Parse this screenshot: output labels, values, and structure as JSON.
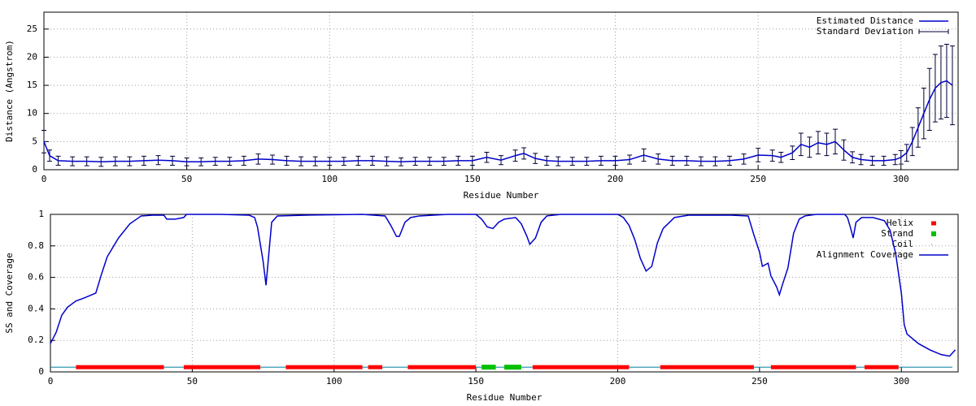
{
  "chart_data": [
    {
      "type": "errorbar",
      "x_label": "Residue Number",
      "y_label": "Distance (Angstrom)",
      "xlim": [
        0,
        320
      ],
      "ylim": [
        0,
        28
      ],
      "xticks": [
        0,
        50,
        100,
        150,
        200,
        250,
        300
      ],
      "yticks": [
        0,
        5,
        10,
        15,
        20,
        25
      ],
      "grid": true,
      "legend": "upper right",
      "x": [
        0,
        2,
        5,
        10,
        15,
        20,
        25,
        30,
        35,
        40,
        45,
        50,
        55,
        60,
        65,
        70,
        75,
        80,
        85,
        90,
        95,
        100,
        105,
        110,
        115,
        120,
        125,
        130,
        135,
        140,
        145,
        150,
        155,
        160,
        165,
        168,
        172,
        176,
        180,
        185,
        190,
        195,
        200,
        205,
        210,
        215,
        220,
        225,
        230,
        235,
        240,
        245,
        250,
        255,
        258,
        262,
        265,
        268,
        271,
        274,
        277,
        280,
        283,
        286,
        290,
        294,
        298,
        300,
        302,
        304,
        306,
        308,
        310,
        312,
        314,
        316,
        318
      ],
      "series": [
        {
          "name": "Estimated Distance",
          "color": "#0000cc",
          "values": [
            5.0,
            2.5,
            1.6,
            1.5,
            1.5,
            1.4,
            1.5,
            1.5,
            1.6,
            1.7,
            1.6,
            1.4,
            1.4,
            1.5,
            1.5,
            1.6,
            1.9,
            1.8,
            1.6,
            1.5,
            1.5,
            1.5,
            1.5,
            1.6,
            1.6,
            1.5,
            1.4,
            1.5,
            1.5,
            1.5,
            1.6,
            1.6,
            2.2,
            1.7,
            2.5,
            2.9,
            2.0,
            1.6,
            1.5,
            1.5,
            1.5,
            1.6,
            1.6,
            1.8,
            2.6,
            1.9,
            1.6,
            1.6,
            1.5,
            1.5,
            1.6,
            1.9,
            2.6,
            2.5,
            2.2,
            3.0,
            4.5,
            4.0,
            4.8,
            4.5,
            5.0,
            3.5,
            2.2,
            1.8,
            1.6,
            1.6,
            1.8,
            2.2,
            3.0,
            5.0,
            7.5,
            10.0,
            12.5,
            14.5,
            15.5,
            15.8,
            15.0
          ]
        },
        {
          "name": "Standard Deviation",
          "color": "#000033",
          "errors": [
            2.0,
            1.0,
            0.8,
            0.8,
            0.8,
            0.8,
            0.8,
            0.8,
            0.8,
            0.8,
            0.8,
            0.7,
            0.7,
            0.7,
            0.7,
            0.8,
            0.9,
            0.8,
            0.8,
            0.8,
            0.8,
            0.7,
            0.7,
            0.8,
            0.8,
            0.8,
            0.7,
            0.7,
            0.7,
            0.7,
            0.8,
            0.8,
            0.9,
            0.8,
            1.0,
            1.0,
            0.9,
            0.8,
            0.8,
            0.7,
            0.7,
            0.8,
            0.8,
            0.8,
            1.1,
            0.9,
            0.8,
            0.8,
            0.8,
            0.8,
            0.8,
            0.9,
            1.2,
            1.0,
            0.9,
            1.2,
            2.0,
            1.8,
            2.0,
            2.0,
            2.2,
            1.8,
            1.0,
            0.9,
            0.8,
            0.8,
            0.9,
            1.2,
            1.5,
            2.5,
            3.5,
            4.5,
            5.5,
            6.0,
            6.5,
            6.5,
            7.0
          ]
        }
      ]
    },
    {
      "type": "line",
      "x_label": "Residue Number",
      "y_label": "SS and Coverage",
      "xlim": [
        0,
        320
      ],
      "ylim": [
        0,
        1
      ],
      "xticks": [
        0,
        50,
        100,
        150,
        200,
        250,
        300
      ],
      "yticks": [
        0,
        0.2,
        0.4,
        0.6,
        0.8,
        1
      ],
      "grid": true,
      "legend": "upper right",
      "series": [
        {
          "name": "Helix",
          "color": "#ff0000",
          "y": 0.03,
          "ranges": [
            [
              9,
              40
            ],
            [
              47,
              74
            ],
            [
              83,
              110
            ],
            [
              112,
              117
            ],
            [
              126,
              150
            ],
            [
              170,
              204
            ],
            [
              215,
              248
            ],
            [
              254,
              284
            ],
            [
              287,
              299
            ]
          ]
        },
        {
          "name": "Strand",
          "color": "#00c000",
          "y": 0.03,
          "ranges": [
            [
              152,
              157
            ],
            [
              160,
              166
            ]
          ]
        },
        {
          "name": "Coil",
          "color": "#0080a0",
          "y": 0.03,
          "ranges": [
            [
              0,
              9
            ],
            [
              40,
              47
            ],
            [
              74,
              83
            ],
            [
              110,
              112
            ],
            [
              117,
              126
            ],
            [
              150,
              152
            ],
            [
              157,
              160
            ],
            [
              166,
              170
            ],
            [
              204,
              215
            ],
            [
              248,
              254
            ],
            [
              284,
              287
            ],
            [
              299,
              318
            ]
          ]
        },
        {
          "name": "Alignment Coverage",
          "color": "#0000cc",
          "x": [
            0,
            2,
            4,
            6,
            9,
            12,
            16,
            18,
            20,
            24,
            28,
            32,
            36,
            40,
            41,
            44,
            47,
            48,
            60,
            70,
            72,
            73,
            75,
            76,
            77,
            78,
            80,
            90,
            110,
            118,
            120,
            122,
            123,
            125,
            127,
            130,
            140,
            150,
            152,
            154,
            156,
            158,
            160,
            164,
            166,
            168,
            169,
            171,
            173,
            175,
            180,
            200,
            202,
            204,
            206,
            208,
            210,
            212,
            214,
            216,
            220,
            225,
            240,
            246,
            248,
            250,
            251,
            253,
            254,
            256,
            257,
            258,
            260,
            262,
            264,
            266,
            270,
            280,
            281,
            282,
            283,
            284,
            286,
            290,
            294,
            296,
            298,
            300,
            301,
            302,
            306,
            310,
            314,
            317,
            319
          ],
          "values": [
            0.18,
            0.25,
            0.36,
            0.41,
            0.45,
            0.47,
            0.5,
            0.62,
            0.73,
            0.85,
            0.94,
            0.99,
            0.995,
            0.995,
            0.97,
            0.97,
            0.98,
            1,
            1,
            0.995,
            0.98,
            0.92,
            0.7,
            0.55,
            0.75,
            0.95,
            0.99,
            0.995,
            1,
            0.99,
            0.93,
            0.86,
            0.86,
            0.95,
            0.98,
            0.99,
            1,
            1,
            0.97,
            0.92,
            0.91,
            0.95,
            0.97,
            0.98,
            0.94,
            0.86,
            0.81,
            0.85,
            0.95,
            0.99,
            1,
            1,
            0.98,
            0.93,
            0.84,
            0.72,
            0.64,
            0.67,
            0.82,
            0.91,
            0.98,
            0.995,
            0.995,
            0.99,
            0.87,
            0.76,
            0.67,
            0.69,
            0.61,
            0.54,
            0.49,
            0.55,
            0.66,
            0.88,
            0.97,
            0.99,
            1,
            1,
            0.98,
            0.92,
            0.85,
            0.95,
            0.98,
            0.98,
            0.96,
            0.9,
            0.75,
            0.5,
            0.3,
            0.24,
            0.18,
            0.14,
            0.11,
            0.1,
            0.14
          ]
        }
      ]
    }
  ]
}
